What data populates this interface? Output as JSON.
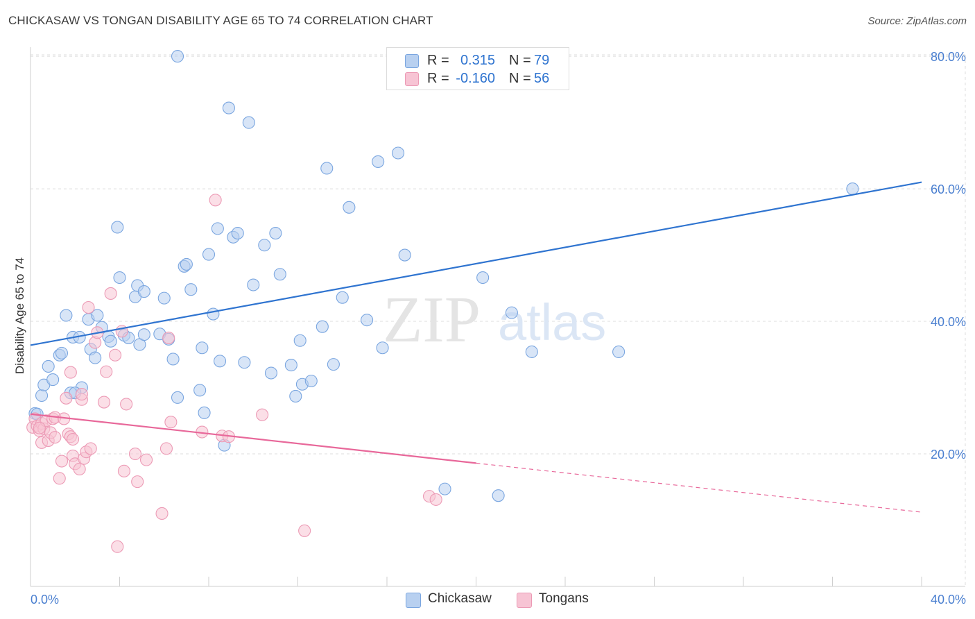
{
  "header": {
    "title": "CHICKASAW VS TONGAN DISABILITY AGE 65 TO 74 CORRELATION CHART",
    "source": "Source: ZipAtlas.com"
  },
  "watermark": {
    "zip": "ZIP",
    "atlas": "atlas"
  },
  "legend": {
    "r_label": "R =",
    "n_label": "N =",
    "rows": [
      {
        "name": "Chickasaw",
        "r": "0.315",
        "n": "79",
        "color": "#5b8fd6"
      },
      {
        "name": "Tongans",
        "r": "-0.160",
        "n": "56",
        "color": "#e8799f"
      }
    ]
  },
  "colors": {
    "blue_fill": "#b8d0f0",
    "blue_stroke": "#7aa6e0",
    "blue_line": "#2f74d0",
    "pink_fill": "#f7c4d4",
    "pink_stroke": "#ec9ab5",
    "pink_line": "#e8689a",
    "tick_text": "#4a7fd0",
    "grid": "#dedede"
  },
  "chart_data": {
    "type": "scatter",
    "title": "CHICKASAW VS TONGAN DISABILITY AGE 65 TO 74 CORRELATION CHART",
    "xlabel": "",
    "ylabel": "Disability Age 65 to 74",
    "xlim": [
      0,
      40
    ],
    "ylim": [
      0,
      82
    ],
    "x_tick_labels": [
      {
        "value": 0,
        "label": "0.0%"
      },
      {
        "value": 40,
        "label": "40.0%"
      }
    ],
    "x_minor_ticks": [
      0,
      4,
      8,
      12,
      16,
      20,
      24,
      28,
      32,
      36,
      40
    ],
    "y_ticks": [
      {
        "value": 20,
        "label": "20.0%"
      },
      {
        "value": 40,
        "label": "40.0%"
      },
      {
        "value": 60,
        "label": "60.0%"
      },
      {
        "value": 80,
        "label": "80.0%"
      }
    ],
    "series": [
      {
        "name": "Chickasaw",
        "trend": {
          "x0": 0,
          "y0": 36.4,
          "x1": 40,
          "y1": 61.0,
          "dashed_to": null
        },
        "points": [
          [
            0.2,
            26.1
          ],
          [
            0.3,
            26.0
          ],
          [
            0.5,
            28.8
          ],
          [
            0.6,
            30.4
          ],
          [
            0.8,
            33.2
          ],
          [
            1.0,
            31.2
          ],
          [
            1.3,
            34.9
          ],
          [
            1.4,
            35.2
          ],
          [
            1.6,
            40.9
          ],
          [
            1.8,
            29.2
          ],
          [
            1.9,
            37.6
          ],
          [
            2.2,
            37.6
          ],
          [
            2.3,
            30.0
          ],
          [
            2.6,
            40.3
          ],
          [
            2.7,
            35.8
          ],
          [
            2.9,
            34.5
          ],
          [
            3.0,
            40.9
          ],
          [
            3.2,
            39.1
          ],
          [
            3.5,
            37.7
          ],
          [
            3.6,
            37.0
          ],
          [
            3.9,
            54.2
          ],
          [
            4.0,
            46.6
          ],
          [
            4.2,
            37.9
          ],
          [
            4.4,
            37.5
          ],
          [
            4.7,
            43.7
          ],
          [
            4.8,
            45.4
          ],
          [
            4.9,
            36.5
          ],
          [
            5.1,
            44.5
          ],
          [
            5.1,
            38.0
          ],
          [
            5.8,
            38.1
          ],
          [
            6.0,
            43.5
          ],
          [
            6.2,
            37.3
          ],
          [
            6.4,
            34.3
          ],
          [
            6.6,
            28.5
          ],
          [
            6.6,
            80.0
          ],
          [
            6.9,
            48.3
          ],
          [
            7.0,
            48.6
          ],
          [
            7.2,
            44.8
          ],
          [
            7.6,
            29.6
          ],
          [
            7.7,
            36.0
          ],
          [
            7.8,
            26.2
          ],
          [
            8.0,
            50.1
          ],
          [
            8.2,
            41.1
          ],
          [
            8.4,
            54.0
          ],
          [
            8.5,
            34.0
          ],
          [
            8.7,
            21.3
          ],
          [
            8.9,
            72.2
          ],
          [
            9.1,
            52.7
          ],
          [
            9.3,
            53.3
          ],
          [
            9.6,
            33.8
          ],
          [
            9.8,
            70.0
          ],
          [
            10.0,
            45.5
          ],
          [
            10.5,
            51.5
          ],
          [
            10.8,
            32.2
          ],
          [
            11.0,
            53.3
          ],
          [
            11.2,
            47.1
          ],
          [
            11.7,
            33.4
          ],
          [
            11.9,
            28.7
          ],
          [
            12.1,
            37.1
          ],
          [
            12.2,
            30.5
          ],
          [
            12.6,
            31.0
          ],
          [
            13.1,
            39.2
          ],
          [
            13.3,
            63.1
          ],
          [
            13.6,
            33.5
          ],
          [
            14.0,
            43.6
          ],
          [
            14.3,
            57.2
          ],
          [
            15.1,
            40.2
          ],
          [
            15.6,
            64.1
          ],
          [
            15.8,
            36.0
          ],
          [
            16.5,
            65.4
          ],
          [
            16.8,
            50.0
          ],
          [
            18.6,
            14.7
          ],
          [
            20.3,
            46.6
          ],
          [
            21.0,
            13.7
          ],
          [
            21.6,
            41.3
          ],
          [
            22.5,
            35.4
          ],
          [
            26.4,
            35.4
          ],
          [
            36.9,
            60.0
          ],
          [
            2.0,
            29.2
          ]
        ]
      },
      {
        "name": "Tongans",
        "trend": {
          "x0": 0,
          "y0": 26.0,
          "x1": 20,
          "y1": 18.6,
          "dashed_to": {
            "x": 40,
            "y": 11.2
          }
        },
        "points": [
          [
            0.1,
            24.0
          ],
          [
            0.2,
            25.3
          ],
          [
            0.3,
            24.2
          ],
          [
            0.4,
            23.5
          ],
          [
            0.5,
            24.6
          ],
          [
            0.5,
            21.7
          ],
          [
            0.6,
            23.8
          ],
          [
            0.7,
            25.0
          ],
          [
            0.8,
            22.0
          ],
          [
            0.9,
            23.2
          ],
          [
            1.0,
            25.3
          ],
          [
            1.1,
            25.5
          ],
          [
            1.1,
            22.5
          ],
          [
            1.3,
            16.3
          ],
          [
            1.4,
            18.9
          ],
          [
            1.5,
            25.3
          ],
          [
            1.6,
            28.4
          ],
          [
            1.7,
            23.0
          ],
          [
            1.8,
            32.3
          ],
          [
            1.8,
            22.6
          ],
          [
            1.9,
            19.7
          ],
          [
            1.9,
            22.2
          ],
          [
            2.0,
            18.5
          ],
          [
            2.2,
            17.7
          ],
          [
            2.3,
            28.2
          ],
          [
            2.3,
            29.0
          ],
          [
            2.4,
            19.3
          ],
          [
            2.5,
            20.3
          ],
          [
            2.6,
            42.1
          ],
          [
            2.7,
            20.8
          ],
          [
            2.9,
            36.8
          ],
          [
            3.0,
            38.3
          ],
          [
            3.3,
            27.8
          ],
          [
            3.4,
            32.4
          ],
          [
            3.6,
            44.2
          ],
          [
            3.8,
            34.9
          ],
          [
            3.9,
            6.0
          ],
          [
            4.1,
            38.5
          ],
          [
            4.2,
            17.4
          ],
          [
            4.3,
            27.5
          ],
          [
            4.7,
            20.0
          ],
          [
            4.8,
            15.8
          ],
          [
            5.2,
            19.1
          ],
          [
            5.9,
            11.0
          ],
          [
            6.1,
            20.8
          ],
          [
            6.3,
            24.8
          ],
          [
            6.2,
            37.5
          ],
          [
            7.7,
            23.3
          ],
          [
            8.3,
            58.3
          ],
          [
            8.6,
            22.7
          ],
          [
            8.9,
            22.6
          ],
          [
            10.4,
            25.9
          ],
          [
            12.3,
            8.4
          ],
          [
            17.9,
            13.6
          ],
          [
            18.2,
            13.1
          ],
          [
            0.4,
            23.9
          ]
        ]
      }
    ]
  }
}
